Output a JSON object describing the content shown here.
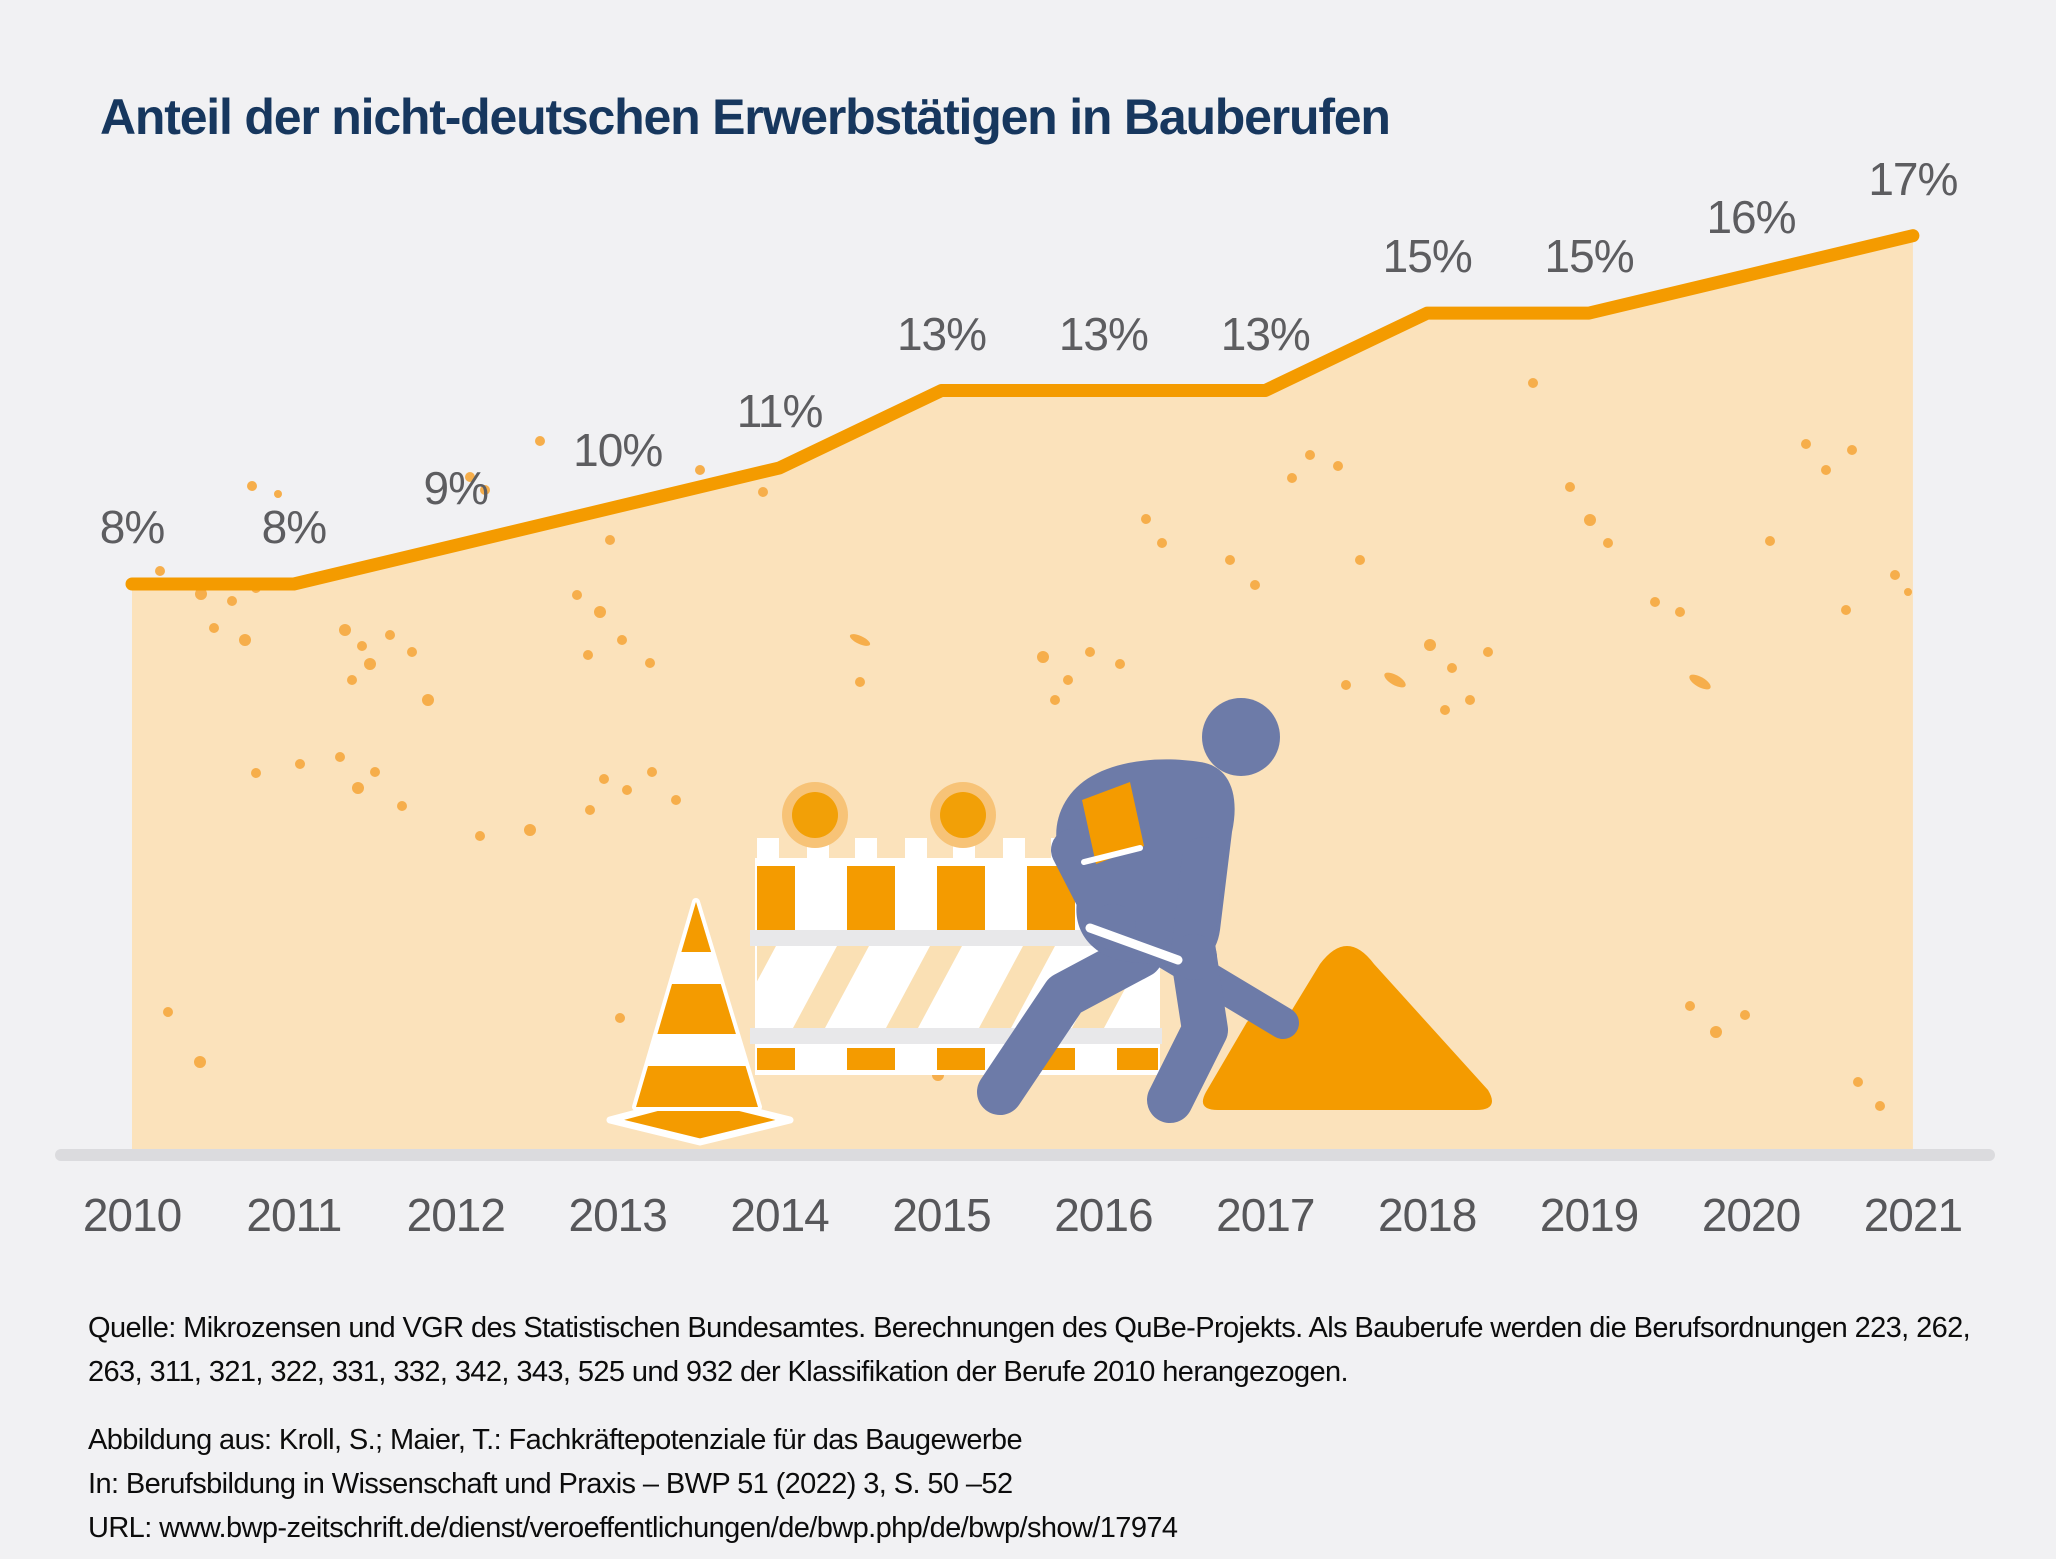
{
  "title": "Anteil der nicht-deutschen Erwerbstätigen in Bauberufen",
  "chart_data": {
    "type": "area",
    "title": "Anteil der nicht-deutschen Erwerbstätigen in Bauberufen",
    "x": [
      2010,
      2011,
      2012,
      2013,
      2014,
      2015,
      2016,
      2017,
      2018,
      2019,
      2020,
      2021
    ],
    "values": [
      8,
      8,
      9,
      10,
      11,
      13,
      13,
      13,
      15,
      15,
      16,
      17
    ],
    "unit": "%",
    "data_labels": [
      "8%",
      "8%",
      "9%",
      "10%",
      "11%",
      "13%",
      "13%",
      "13%",
      "15%",
      "15%",
      "16%",
      "17%"
    ],
    "x_tick_labels": [
      "2010",
      "2011",
      "2012",
      "2013",
      "2014",
      "2015",
      "2016",
      "2017",
      "2018",
      "2019",
      "2020",
      "2021"
    ],
    "grid": false,
    "legend": "none",
    "y_axis_shown": false
  },
  "footer": {
    "source_line1": "Quelle: Mikrozensen und VGR des Statistischen Bundesamtes. Berechnungen des QuBe-Projekts. Als Bauberufe werden die Berufsordnungen 223, 262,",
    "source_line2": "263, 311, 321, 322, 331, 332, 342, 343, 525 und 932 der Klassifikation der Berufe 2010 herangezogen.",
    "attribution_line1": "Abbildung aus: Kroll, S.; Maier, T.: Fachkräftepotenziale für das Baugewerbe",
    "attribution_line2": "In: Berufsbildung in Wissenschaft und Praxis – BWP 51 (2022) 3, S. 50 –52",
    "attribution_line3": "URL: www.bwp-zeitschrift.de/dienst/veroeffentlichungen/de/bwp.php/de/bwp/show/17974"
  },
  "illustration": {
    "name": "construction-scene",
    "elements": [
      "traffic-cone",
      "barrier-with-warning-lamps",
      "construction-worker",
      "shovel",
      "sand-pile"
    ]
  },
  "colors": {
    "background": "#F1F1F3",
    "accent_orange": "#F49B00",
    "area_fill": "#FBE2BB",
    "speckle_orange": "#F6AE4B",
    "hatch_peach": "#FAE0B4",
    "title_navy": "#17375E",
    "label_grey": "#5D5D60",
    "axis_grey": "#DBDBDE",
    "rail_grey": "#E8E8EA",
    "worker_blue": "#6D7BA8",
    "lamp_glow": "#F7C377"
  }
}
